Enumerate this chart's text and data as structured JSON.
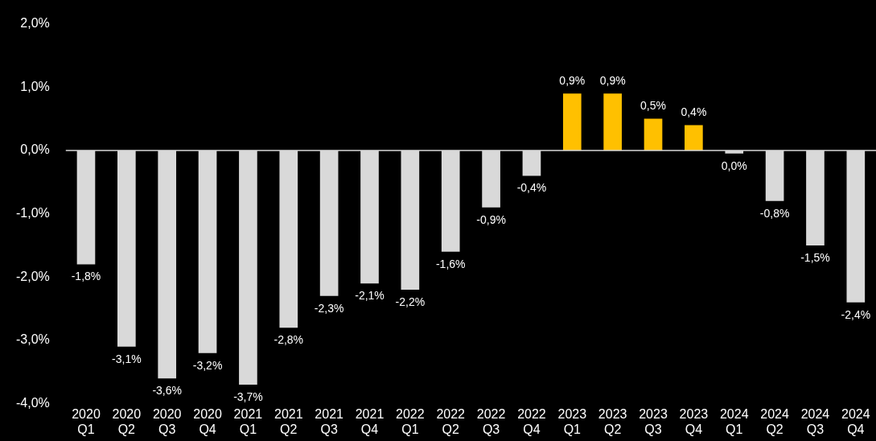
{
  "chart_data": {
    "type": "bar",
    "categories": [
      "2020 Q1",
      "2020 Q2",
      "2020 Q3",
      "2020 Q4",
      "2021 Q1",
      "2021 Q2",
      "2021 Q3",
      "2021 Q4",
      "2022 Q1",
      "2022 Q2",
      "2022 Q3",
      "2022 Q4",
      "2023 Q1",
      "2023 Q2",
      "2023 Q3",
      "2023 Q4",
      "2024 Q1",
      "2024 Q2",
      "2024 Q3",
      "2024 Q4"
    ],
    "values": [
      -1.8,
      -3.1,
      -3.6,
      -3.2,
      -3.7,
      -2.8,
      -2.3,
      -2.1,
      -2.2,
      -1.6,
      -0.9,
      -0.4,
      0.9,
      0.9,
      0.5,
      0.4,
      -0.05,
      -0.8,
      -1.5,
      -2.4
    ],
    "value_labels": [
      "-1,8%",
      "-3,1%",
      "-3,6%",
      "-3,2%",
      "-3,7%",
      "-2,8%",
      "-2,3%",
      "-2,1%",
      "-2,2%",
      "-1,6%",
      "-0,9%",
      "-0,4%",
      "0,9%",
      "0,9%",
      "0,5%",
      "0,4%",
      "0,0%",
      "-0,8%",
      "-1,5%",
      "-2,4%"
    ],
    "colors": [
      "#d9d9d9",
      "#d9d9d9",
      "#d9d9d9",
      "#d9d9d9",
      "#d9d9d9",
      "#d9d9d9",
      "#d9d9d9",
      "#d9d9d9",
      "#d9d9d9",
      "#d9d9d9",
      "#d9d9d9",
      "#d9d9d9",
      "#ffc000",
      "#ffc000",
      "#ffc000",
      "#ffc000",
      "#d9d9d9",
      "#d9d9d9",
      "#d9d9d9",
      "#d9d9d9"
    ],
    "ylim": [
      -4,
      2
    ],
    "yticks": [
      {
        "value": -4,
        "label": "-4,0%"
      },
      {
        "value": -3,
        "label": "-3,0%"
      },
      {
        "value": -2,
        "label": "-2,0%"
      },
      {
        "value": -1,
        "label": "-1,0%"
      },
      {
        "value": 0,
        "label": "0,0%"
      },
      {
        "value": 1,
        "label": "1,0%"
      },
      {
        "value": 2,
        "label": "2,0%"
      }
    ],
    "ref_lines": [
      {
        "axis": "y",
        "value": 0,
        "color": "#d9d9d9"
      }
    ],
    "grid": false,
    "legend": false
  }
}
